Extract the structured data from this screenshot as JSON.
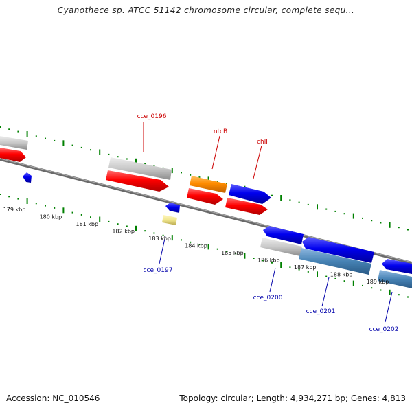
{
  "title": "Cyanothece sp. ATCC 51142 chromosome circular, complete sequ...",
  "footer": {
    "accession": "Accession: NC_010546",
    "summary": "Topology: circular; Length: 4,934,271 bp; Genes: 4,813"
  },
  "scale_labels": [
    "179 kbp",
    "180 kbp",
    "181 kbp",
    "182 kbp",
    "183 kbp",
    "184 kbp",
    "185 kbp",
    "186 kbp",
    "187 kbp",
    "188 kbp",
    "189 kbp"
  ],
  "gene_labels": {
    "cce_0196": "cce_0196",
    "ntcB": "ntcB",
    "chlI": "chlI",
    "cce_0197": "cce_0197",
    "cce_0200": "cce_0200",
    "cce_0201": "cce_0201",
    "cce_0202": "cce_0202"
  },
  "colors": {
    "label_forward": "#cc0000",
    "label_reverse": "#0000aa",
    "tick": "#008000",
    "backbone": "#808080",
    "gene_red": "#ff0000",
    "gene_blue": "#0000ee",
    "gene_orange": "#ff8c00",
    "gene_gray": "#c8c8c8",
    "gene_steel": "#4682b4",
    "gene_yellow": "#f0e68c"
  }
}
